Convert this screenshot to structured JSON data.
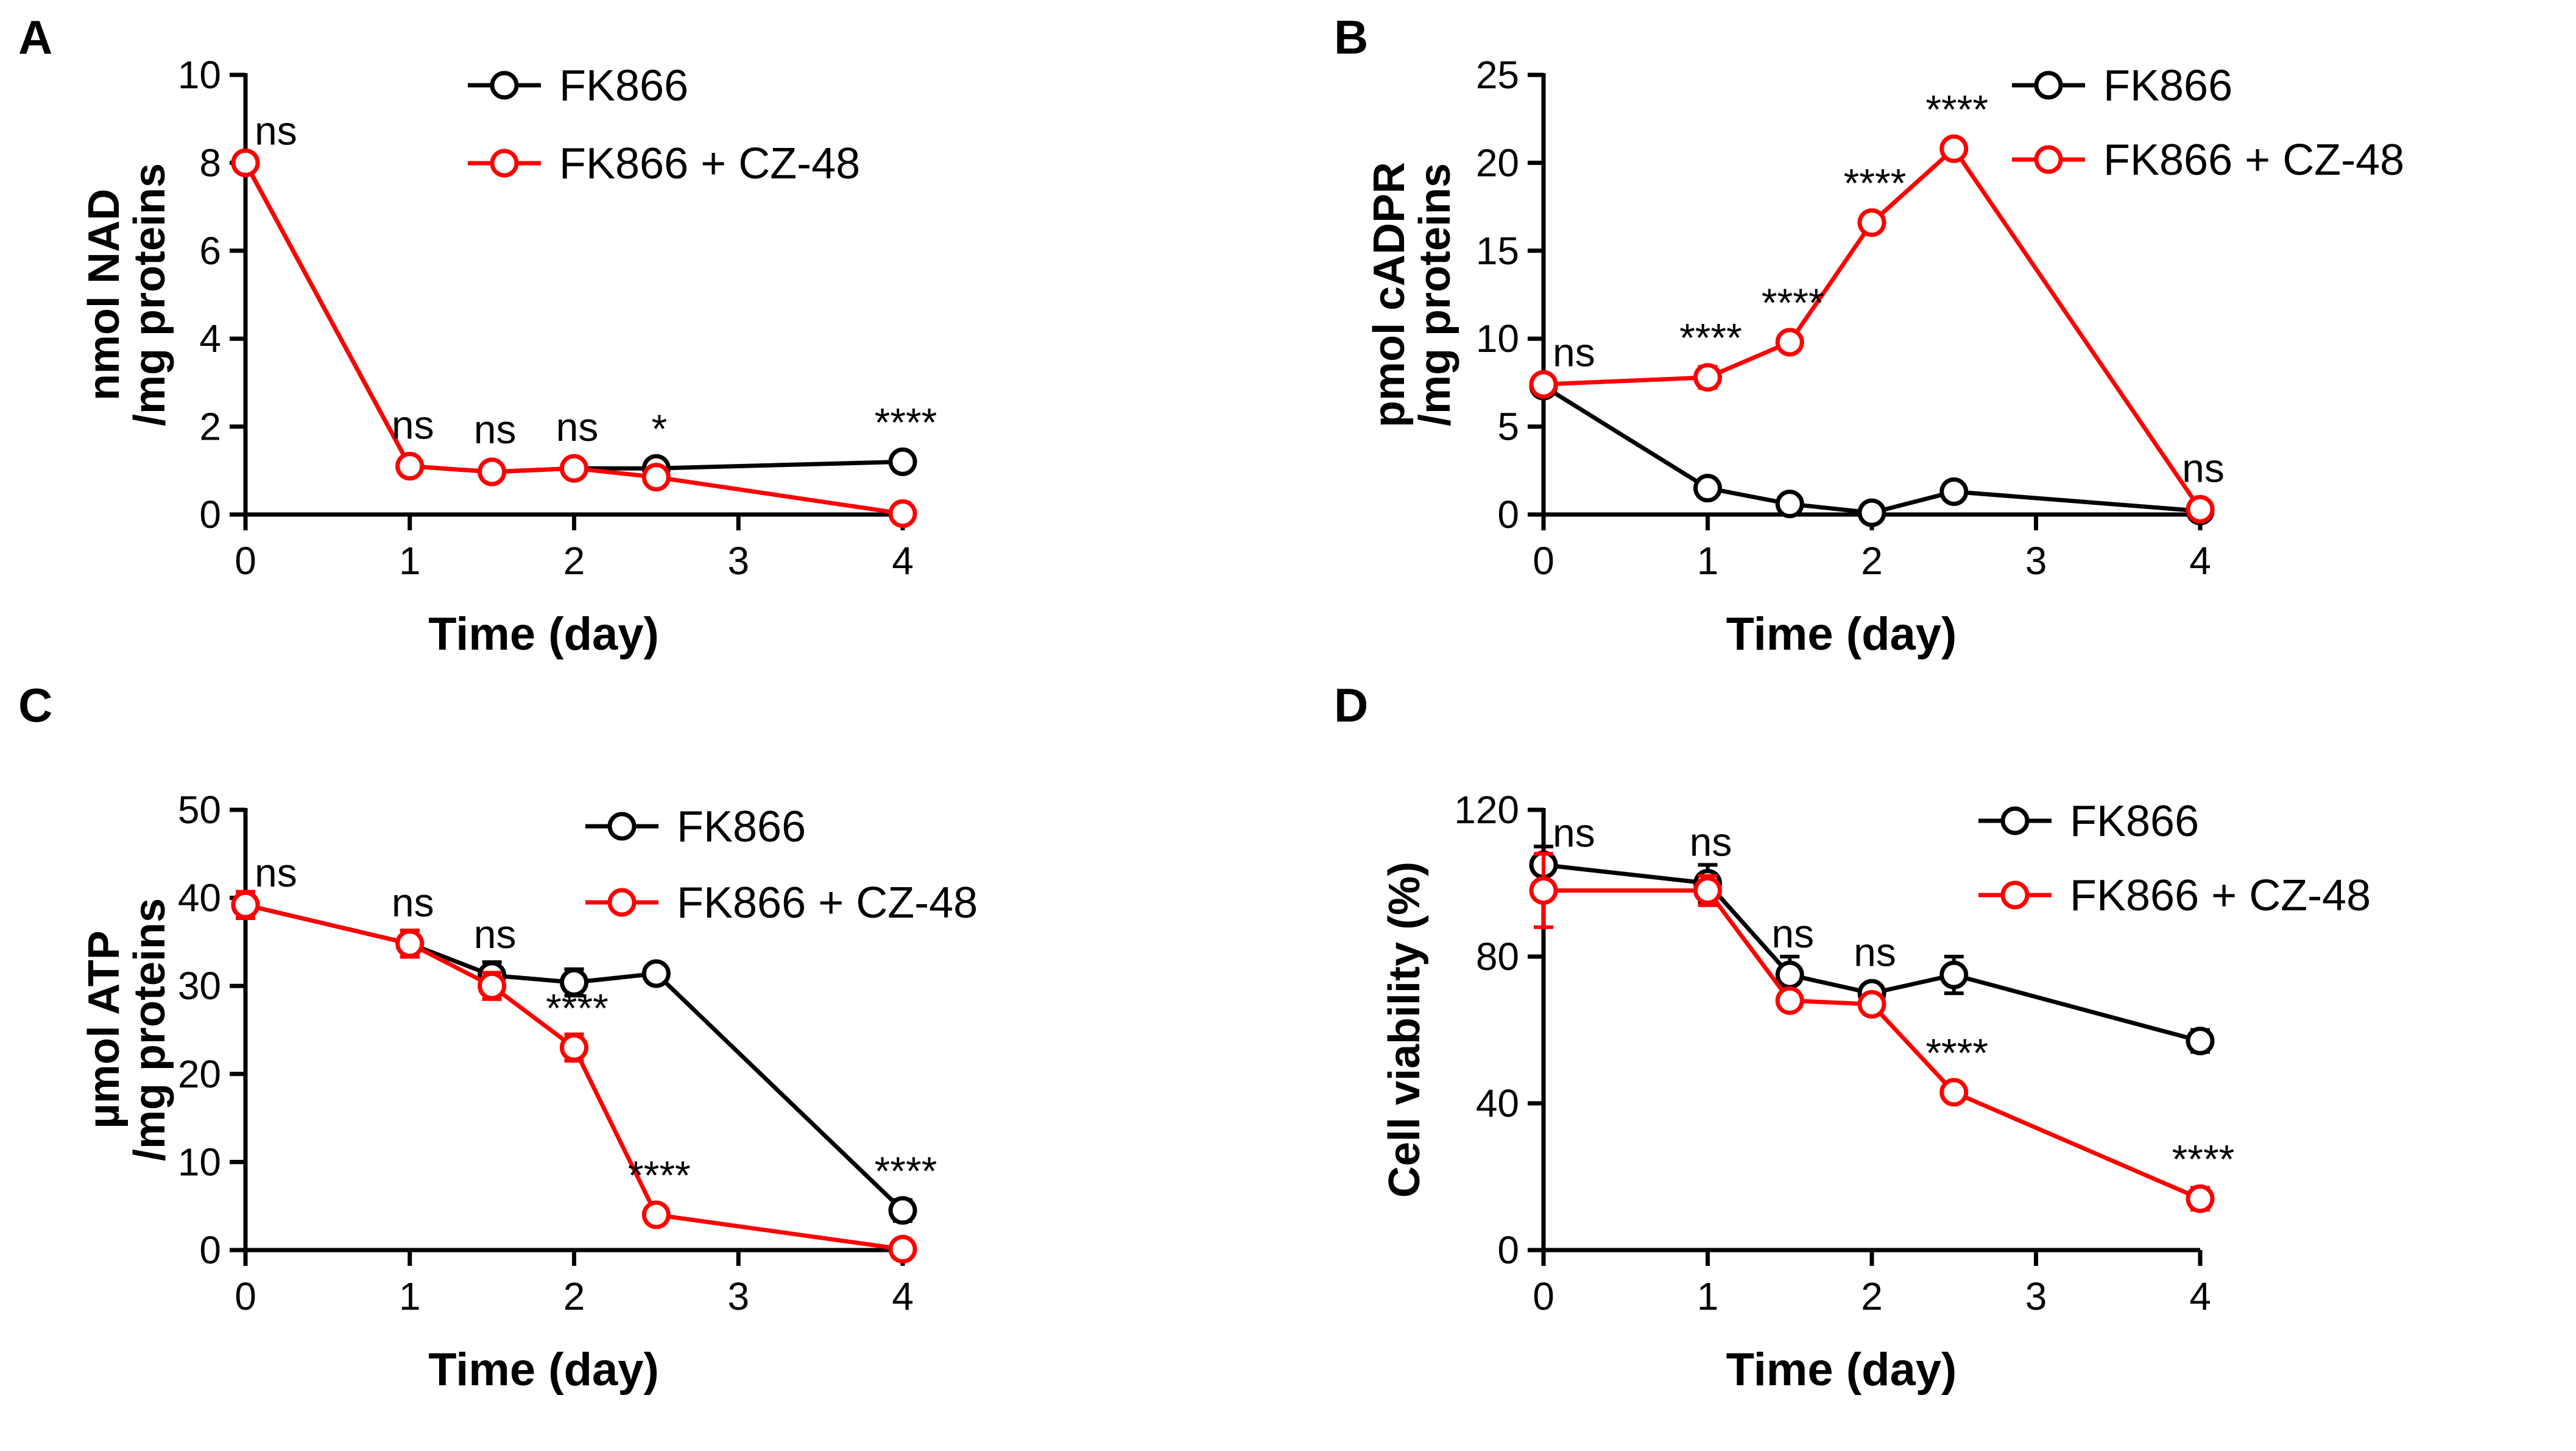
{
  "chart_data": [
    {
      "panel": "A",
      "type": "line",
      "xlabel": "Time (day)",
      "ylabel": [
        "nmol NAD",
        "/mg proteins"
      ],
      "xlim": [
        0,
        4
      ],
      "ylim": [
        0,
        10
      ],
      "xticks": [
        0,
        1,
        2,
        3,
        4
      ],
      "yticks": [
        0,
        2,
        4,
        6,
        8,
        10
      ],
      "legend": [
        "FK866",
        "FK866 + CZ-48"
      ],
      "series": [
        {
          "name": "FK866",
          "color": "#000000",
          "x": [
            0,
            1,
            1.5,
            2,
            2.5,
            4
          ],
          "y": [
            8.0,
            1.1,
            0.97,
            1.05,
            1.05,
            1.2
          ],
          "err": [
            0.15,
            0.08,
            0.05,
            0.05,
            0.05,
            0.06
          ]
        },
        {
          "name": "FK866 + CZ-48",
          "color": "#ff0000",
          "x": [
            0,
            1,
            1.5,
            2,
            2.5,
            4
          ],
          "y": [
            8.0,
            1.1,
            0.97,
            1.05,
            0.85,
            0.02
          ],
          "err": [
            0.15,
            0.08,
            0.05,
            0.05,
            0.05,
            0.03
          ]
        }
      ],
      "annotations": [
        {
          "x": 0,
          "y": 8.0,
          "text": "ns"
        },
        {
          "x": 1,
          "y": 1.1,
          "text": "ns"
        },
        {
          "x": 1.5,
          "y": 1.0,
          "text": "ns"
        },
        {
          "x": 2,
          "y": 1.05,
          "text": "ns"
        },
        {
          "x": 2.5,
          "y": 1.05,
          "text": "*"
        },
        {
          "x": 4,
          "y": 1.2,
          "text": "****"
        }
      ]
    },
    {
      "panel": "B",
      "type": "line",
      "xlabel": "Time (day)",
      "ylabel": [
        "pmol cADPR",
        "/mg proteins"
      ],
      "xlim": [
        0,
        4
      ],
      "ylim": [
        0,
        25
      ],
      "xticks": [
        0,
        1,
        2,
        3,
        4
      ],
      "yticks": [
        0,
        5,
        10,
        15,
        20,
        25
      ],
      "legend": [
        "FK866",
        "FK866 + CZ-48"
      ],
      "series": [
        {
          "name": "FK866",
          "color": "#000000",
          "x": [
            0,
            1,
            1.5,
            2,
            2.5,
            4
          ],
          "y": [
            7.3,
            1.5,
            0.6,
            0.1,
            1.3,
            0.2
          ],
          "err": [
            0.3,
            0.2,
            0.2,
            0.4,
            0.2,
            0.4
          ]
        },
        {
          "name": "FK866 + CZ-48",
          "color": "#ff0000",
          "x": [
            0,
            1,
            1.5,
            2,
            2.5,
            4
          ],
          "y": [
            7.4,
            7.8,
            9.8,
            16.6,
            20.8,
            0.3
          ],
          "err": [
            0.3,
            0.6,
            0.4,
            0.4,
            0.3,
            0.3
          ]
        }
      ],
      "annotations": [
        {
          "x": 0,
          "y": 7.4,
          "text": "ns"
        },
        {
          "x": 1,
          "y": 7.8,
          "text": "****"
        },
        {
          "x": 1.5,
          "y": 9.8,
          "text": "****"
        },
        {
          "x": 2,
          "y": 16.6,
          "text": "****"
        },
        {
          "x": 2.5,
          "y": 20.8,
          "text": "****"
        },
        {
          "x": 4,
          "y": 0.3,
          "text": "ns"
        }
      ]
    },
    {
      "panel": "C",
      "type": "line",
      "xlabel": "Time (day)",
      "ylabel": [
        "µmol ATP",
        "/mg proteins"
      ],
      "xlim": [
        0,
        4
      ],
      "ylim": [
        0,
        50
      ],
      "xticks": [
        0,
        1,
        2,
        3,
        4
      ],
      "yticks": [
        0,
        10,
        20,
        30,
        40,
        50
      ],
      "legend": [
        "FK866",
        "FK866 + CZ-48"
      ],
      "series": [
        {
          "name": "FK866",
          "color": "#000000",
          "x": [
            0,
            1,
            1.5,
            2,
            2.5,
            4
          ],
          "y": [
            39.2,
            34.8,
            31.2,
            30.4,
            31.4,
            4.5
          ],
          "err": [
            1.5,
            1.5,
            1.5,
            1.5,
            0.8,
            1.2
          ]
        },
        {
          "name": "FK866 + CZ-48",
          "color": "#ff0000",
          "x": [
            0,
            1,
            1.5,
            2,
            2.5,
            4
          ],
          "y": [
            39.2,
            34.8,
            30.0,
            23.0,
            4.0,
            0.1
          ],
          "err": [
            1.5,
            1.5,
            1.5,
            1.5,
            0.5,
            0.3
          ]
        }
      ],
      "annotations": [
        {
          "x": 0,
          "y": 39.2,
          "text": "ns"
        },
        {
          "x": 1,
          "y": 34.8,
          "text": "ns"
        },
        {
          "x": 1.5,
          "y": 31.2,
          "text": "ns"
        },
        {
          "x": 2,
          "y": 23.0,
          "text": "****"
        },
        {
          "x": 2.5,
          "y": 4.0,
          "text": "****"
        },
        {
          "x": 4,
          "y": 4.5,
          "text": "****"
        }
      ]
    },
    {
      "panel": "D",
      "type": "line",
      "xlabel": "Time (day)",
      "ylabel": [
        "Cell viability (%)"
      ],
      "xlim": [
        0,
        4
      ],
      "ylim": [
        0,
        120
      ],
      "xticks": [
        0,
        1,
        2,
        3,
        4
      ],
      "yticks": [
        0,
        40,
        80,
        120
      ],
      "legend": [
        "FK866",
        "FK866 + CZ-48"
      ],
      "series": [
        {
          "name": "FK866",
          "color": "#000000",
          "x": [
            0,
            1,
            1.5,
            2,
            2.5,
            4
          ],
          "y": [
            105,
            100,
            75,
            70,
            75,
            57
          ],
          "err": [
            5,
            5,
            5,
            2,
            5,
            3
          ]
        },
        {
          "name": "FK866 + CZ-48",
          "color": "#ff0000",
          "x": [
            0,
            1,
            1.5,
            2,
            2.5,
            4
          ],
          "y": [
            98,
            98,
            68,
            67,
            43,
            14
          ],
          "err": [
            10,
            4,
            2,
            2,
            2,
            3
          ]
        }
      ],
      "annotations": [
        {
          "x": 0,
          "y": 105,
          "text": "ns"
        },
        {
          "x": 1,
          "y": 100,
          "text": "ns"
        },
        {
          "x": 1.5,
          "y": 75,
          "text": "ns"
        },
        {
          "x": 2,
          "y": 70,
          "text": "ns"
        },
        {
          "x": 2.5,
          "y": 43,
          "text": "****"
        },
        {
          "x": 4,
          "y": 14,
          "text": "****"
        }
      ]
    }
  ]
}
